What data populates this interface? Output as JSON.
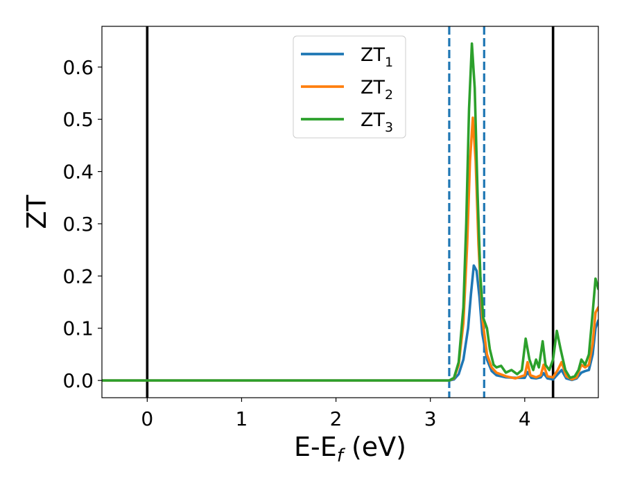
{
  "chart_data": {
    "type": "line",
    "title": "",
    "xlabel": "E-E",
    "xlabel_sub": "f",
    "xlabel_unit": " (eV)",
    "ylabel": "ZT",
    "xlim": [
      -0.48,
      4.78
    ],
    "ylim": [
      -0.033,
      0.678
    ],
    "xticks": [
      0,
      1,
      2,
      3,
      4
    ],
    "xtick_labels": [
      "0",
      "1",
      "2",
      "3",
      "4"
    ],
    "yticks": [
      0.0,
      0.1,
      0.2,
      0.3,
      0.4,
      0.5,
      0.6
    ],
    "ytick_labels": [
      "0.0",
      "0.1",
      "0.2",
      "0.3",
      "0.4",
      "0.5",
      "0.6"
    ],
    "grid": false,
    "legend_position": "top-center",
    "vlines": [
      {
        "x": 0.0,
        "style": "solid",
        "color": "#000000"
      },
      {
        "x": 4.3,
        "style": "solid",
        "color": "#000000"
      },
      {
        "x": 3.2,
        "style": "dashed",
        "color": "#1f77b4"
      },
      {
        "x": 3.57,
        "style": "dashed",
        "color": "#1f77b4"
      }
    ],
    "series": [
      {
        "name": "ZT",
        "subscript": "1",
        "color": "#1f77b4",
        "points": [
          [
            -0.48,
            0.0
          ],
          [
            3.2,
            0.0
          ],
          [
            3.25,
            0.002
          ],
          [
            3.3,
            0.012
          ],
          [
            3.35,
            0.04
          ],
          [
            3.4,
            0.1
          ],
          [
            3.43,
            0.165
          ],
          [
            3.46,
            0.22
          ],
          [
            3.49,
            0.21
          ],
          [
            3.52,
            0.16
          ],
          [
            3.55,
            0.09
          ],
          [
            3.6,
            0.04
          ],
          [
            3.65,
            0.018
          ],
          [
            3.7,
            0.01
          ],
          [
            3.8,
            0.006
          ],
          [
            3.9,
            0.005
          ],
          [
            4.0,
            0.005
          ],
          [
            4.03,
            0.016
          ],
          [
            4.07,
            0.005
          ],
          [
            4.12,
            0.004
          ],
          [
            4.17,
            0.006
          ],
          [
            4.2,
            0.014
          ],
          [
            4.24,
            0.004
          ],
          [
            4.3,
            0.002
          ],
          [
            4.35,
            0.012
          ],
          [
            4.39,
            0.02
          ],
          [
            4.44,
            0.004
          ],
          [
            4.5,
            0.001
          ],
          [
            4.55,
            0.004
          ],
          [
            4.6,
            0.015
          ],
          [
            4.64,
            0.018
          ],
          [
            4.68,
            0.02
          ],
          [
            4.72,
            0.05
          ],
          [
            4.75,
            0.1
          ],
          [
            4.78,
            0.115
          ]
        ]
      },
      {
        "name": "ZT",
        "subscript": "2",
        "color": "#ff7f0e",
        "points": [
          [
            -0.48,
            0.0
          ],
          [
            3.2,
            0.0
          ],
          [
            3.25,
            0.004
          ],
          [
            3.3,
            0.03
          ],
          [
            3.35,
            0.11
          ],
          [
            3.39,
            0.26
          ],
          [
            3.42,
            0.42
          ],
          [
            3.45,
            0.503
          ],
          [
            3.48,
            0.42
          ],
          [
            3.51,
            0.26
          ],
          [
            3.55,
            0.12
          ],
          [
            3.6,
            0.05
          ],
          [
            3.65,
            0.025
          ],
          [
            3.7,
            0.015
          ],
          [
            3.8,
            0.008
          ],
          [
            3.9,
            0.004
          ],
          [
            4.0,
            0.01
          ],
          [
            4.03,
            0.035
          ],
          [
            4.06,
            0.01
          ],
          [
            4.12,
            0.006
          ],
          [
            4.17,
            0.01
          ],
          [
            4.2,
            0.03
          ],
          [
            4.24,
            0.008
          ],
          [
            4.3,
            0.006
          ],
          [
            4.35,
            0.02
          ],
          [
            4.39,
            0.035
          ],
          [
            4.44,
            0.008
          ],
          [
            4.5,
            0.002
          ],
          [
            4.55,
            0.006
          ],
          [
            4.6,
            0.03
          ],
          [
            4.64,
            0.025
          ],
          [
            4.68,
            0.03
          ],
          [
            4.72,
            0.07
          ],
          [
            4.75,
            0.13
          ],
          [
            4.78,
            0.14
          ]
        ]
      },
      {
        "name": "ZT",
        "subscript": "3",
        "color": "#2ca02c",
        "points": [
          [
            -0.48,
            0.0
          ],
          [
            3.2,
            0.0
          ],
          [
            3.25,
            0.005
          ],
          [
            3.3,
            0.035
          ],
          [
            3.35,
            0.14
          ],
          [
            3.38,
            0.3
          ],
          [
            3.41,
            0.52
          ],
          [
            3.44,
            0.645
          ],
          [
            3.47,
            0.56
          ],
          [
            3.5,
            0.36
          ],
          [
            3.53,
            0.2
          ],
          [
            3.56,
            0.12
          ],
          [
            3.6,
            0.1
          ],
          [
            3.63,
            0.06
          ],
          [
            3.67,
            0.03
          ],
          [
            3.7,
            0.025
          ],
          [
            3.75,
            0.028
          ],
          [
            3.8,
            0.015
          ],
          [
            3.86,
            0.02
          ],
          [
            3.92,
            0.012
          ],
          [
            3.97,
            0.02
          ],
          [
            4.01,
            0.08
          ],
          [
            4.05,
            0.04
          ],
          [
            4.09,
            0.02
          ],
          [
            4.12,
            0.04
          ],
          [
            4.15,
            0.025
          ],
          [
            4.19,
            0.075
          ],
          [
            4.22,
            0.03
          ],
          [
            4.26,
            0.02
          ],
          [
            4.3,
            0.04
          ],
          [
            4.34,
            0.095
          ],
          [
            4.38,
            0.06
          ],
          [
            4.43,
            0.02
          ],
          [
            4.48,
            0.005
          ],
          [
            4.53,
            0.008
          ],
          [
            4.57,
            0.02
          ],
          [
            4.6,
            0.04
          ],
          [
            4.64,
            0.03
          ],
          [
            4.68,
            0.05
          ],
          [
            4.72,
            0.13
          ],
          [
            4.75,
            0.195
          ],
          [
            4.78,
            0.175
          ]
        ]
      }
    ]
  }
}
